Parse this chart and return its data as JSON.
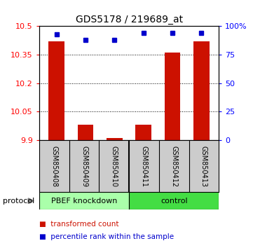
{
  "title": "GDS5178 / 219689_at",
  "samples": [
    "GSM850408",
    "GSM850409",
    "GSM850410",
    "GSM850411",
    "GSM850412",
    "GSM850413"
  ],
  "red_values": [
    10.42,
    9.98,
    9.91,
    9.98,
    10.36,
    10.42
  ],
  "blue_values": [
    93,
    88,
    88,
    94,
    94,
    94
  ],
  "ylim_left": [
    9.9,
    10.5
  ],
  "ylim_right": [
    0,
    100
  ],
  "yticks_left": [
    9.9,
    10.05,
    10.2,
    10.35,
    10.5
  ],
  "yticks_right": [
    0,
    25,
    50,
    75,
    100
  ],
  "ytick_labels_right": [
    "0",
    "25",
    "50",
    "75",
    "100%"
  ],
  "baseline": 9.9,
  "group1_label": "PBEF knockdown",
  "group1_color": "#aaffaa",
  "group2_label": "control",
  "group2_color": "#44dd44",
  "bar_color": "#cc1100",
  "dot_color": "#0000cc",
  "sample_bg_color": "#cccccc",
  "protocol_label": "protocol",
  "legend1_label": "transformed count",
  "legend2_label": "percentile rank within the sample",
  "bar_width": 0.55
}
